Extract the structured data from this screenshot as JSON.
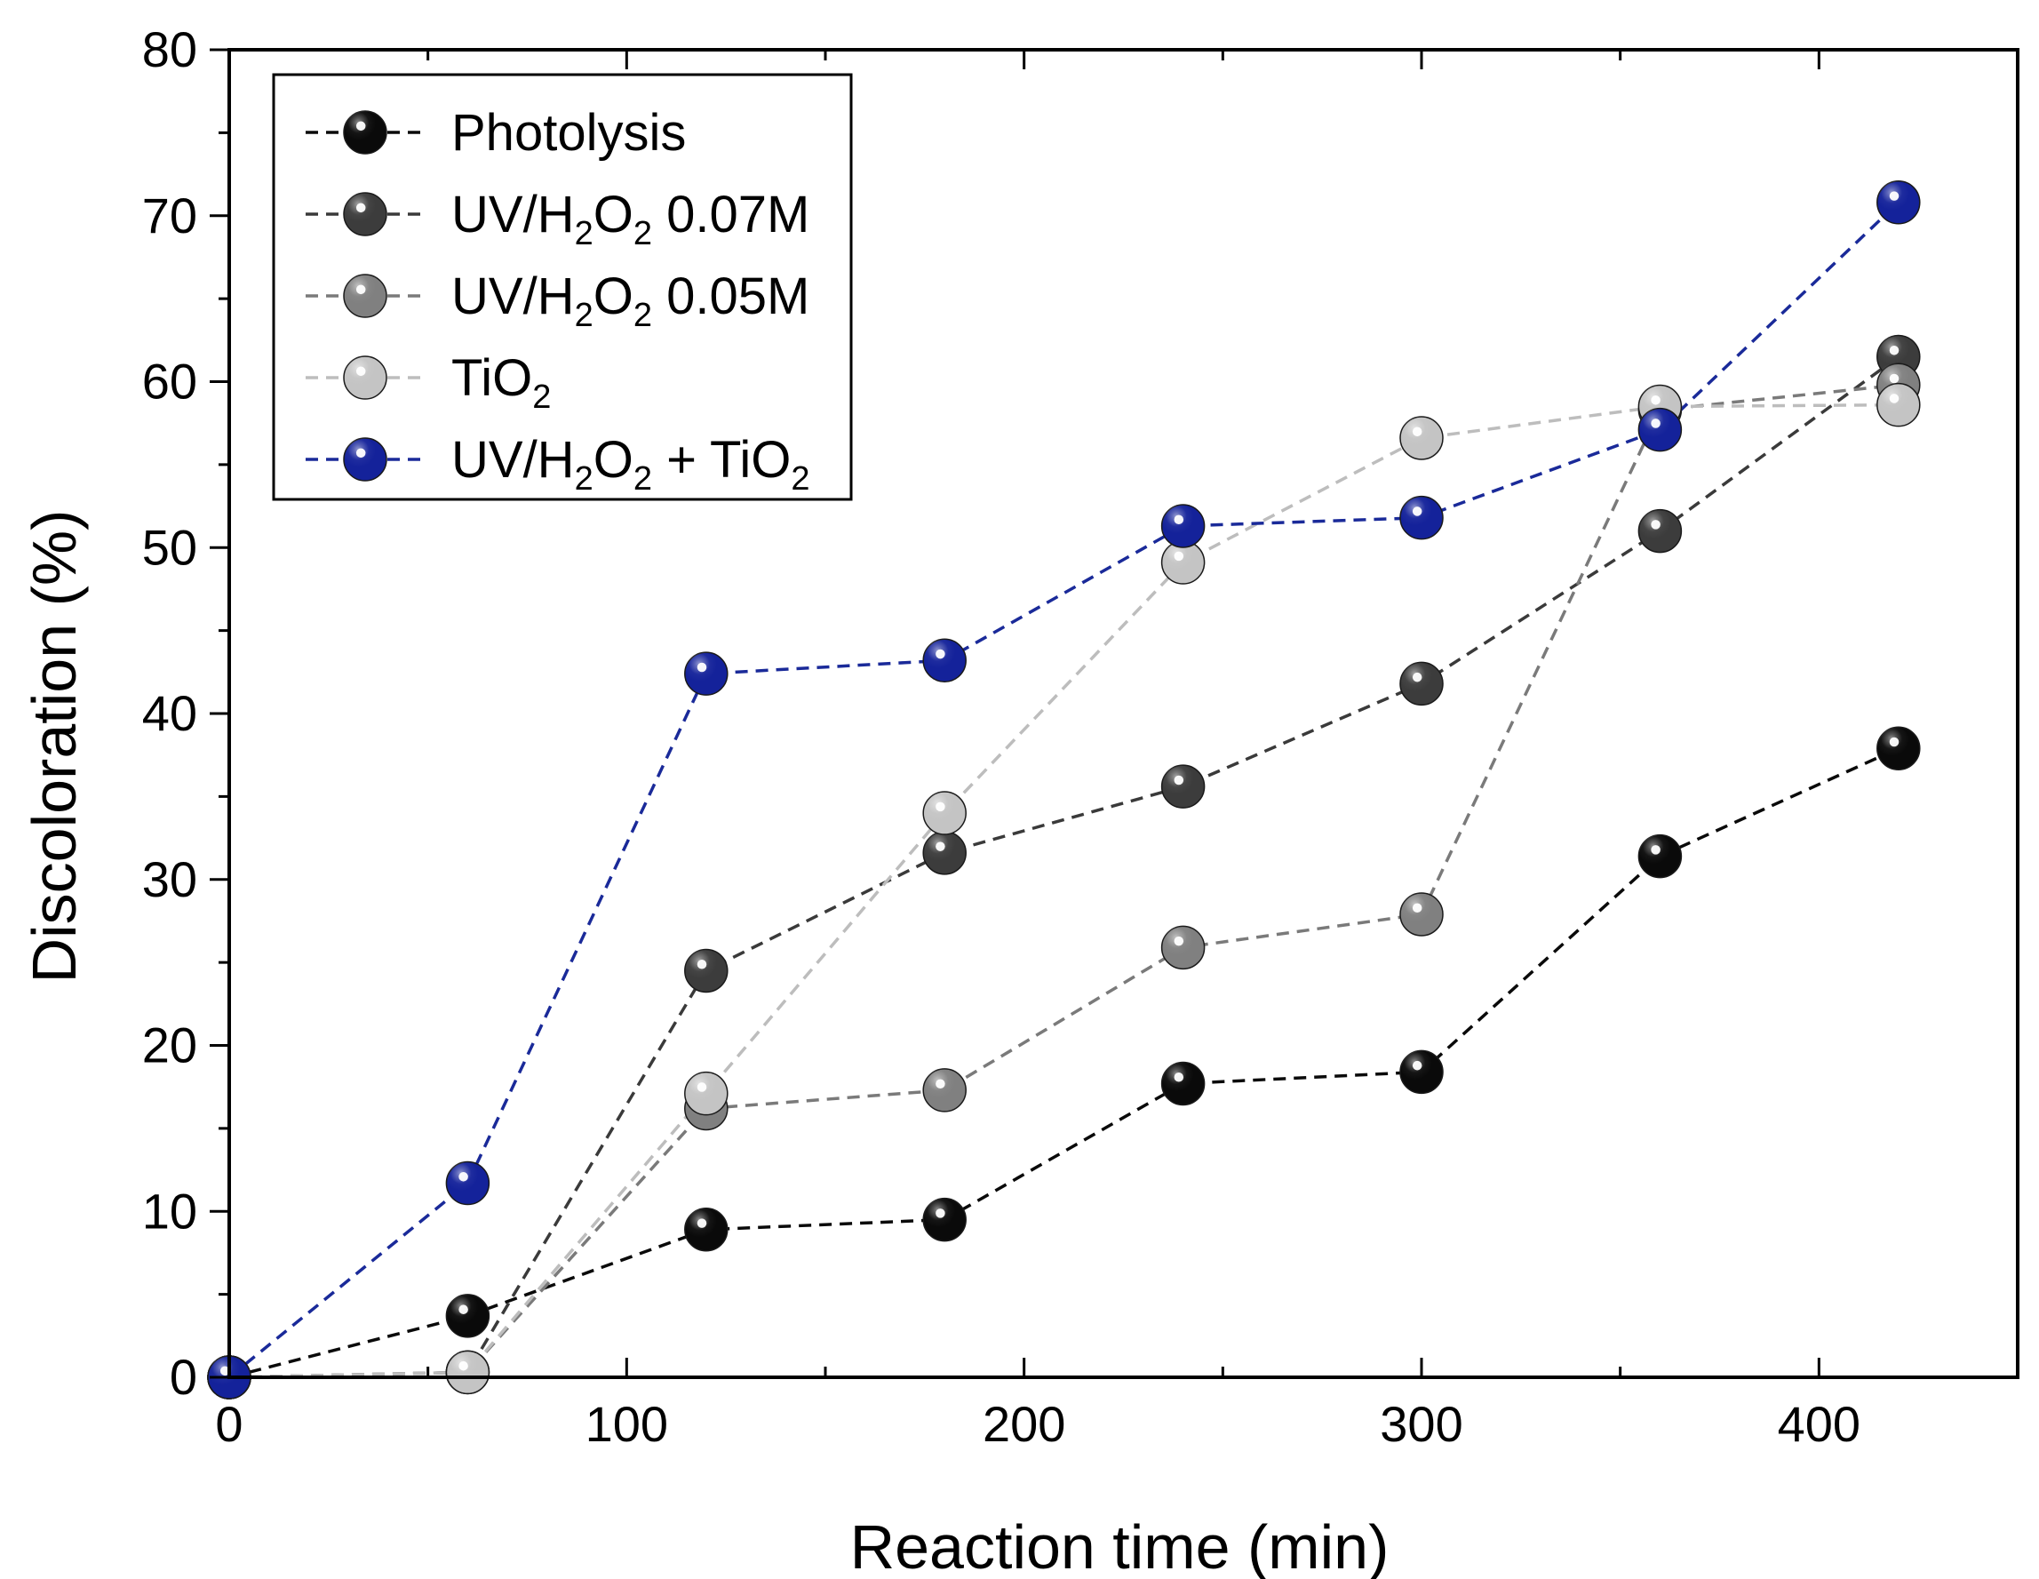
{
  "chart_data": {
    "type": "line",
    "title": "",
    "xlabel": "Reaction time (min)",
    "ylabel": "Discoloration (%)",
    "xlim": [
      0,
      450
    ],
    "ylim": [
      0,
      80
    ],
    "xticks": [
      0,
      100,
      200,
      300,
      400
    ],
    "yticks": [
      0,
      10,
      20,
      30,
      40,
      50,
      60,
      70,
      80
    ],
    "grid": false,
    "legend_position": "top-left",
    "x": [
      0,
      60,
      120,
      180,
      240,
      300,
      360,
      420
    ],
    "series": [
      {
        "name": "Photolysis",
        "legend_parts": [
          " Photolysis"
        ],
        "color": "#0a0a0a",
        "marker_color": "#0a0a0a",
        "values": [
          0,
          3.7,
          8.9,
          9.5,
          17.7,
          18.4,
          31.4,
          37.9
        ]
      },
      {
        "name": "UV/H2O2 0.07M",
        "legend_parts": [
          "UV/H",
          "2",
          "O",
          "2",
          " 0.07M"
        ],
        "color": "#3a3a3a",
        "marker_color": "#3c3c3c",
        "values": [
          0,
          0.3,
          24.5,
          31.6,
          35.6,
          41.8,
          51.0,
          61.5
        ]
      },
      {
        "name": "UV/H2O2 0.05M",
        "legend_parts": [
          "UV/H",
          "2",
          "O",
          "2",
          " 0.05M"
        ],
        "color": "#7a7a7a",
        "marker_color": "#808080",
        "values": [
          0,
          0.3,
          16.2,
          17.3,
          25.9,
          27.9,
          58.3,
          59.8
        ]
      },
      {
        "name": "TiO2",
        "legend_parts": [
          " TiO",
          "2"
        ],
        "color": "#bdbdbd",
        "marker_color": "#c4c4c4",
        "values": [
          0,
          0.3,
          17.1,
          34.0,
          49.1,
          56.6,
          58.5,
          58.6
        ]
      },
      {
        "name": "UV/H2O2 + TiO2",
        "legend_parts": [
          "UV/H",
          "2",
          "O",
          "2",
          " + TiO",
          "2"
        ],
        "color": "#1a2a99",
        "marker_color": "#14229a",
        "values": [
          0,
          11.7,
          42.4,
          43.2,
          51.3,
          51.8,
          57.1,
          70.8
        ]
      }
    ]
  }
}
